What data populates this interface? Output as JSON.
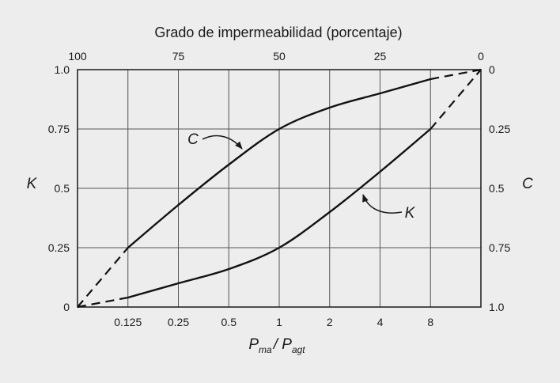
{
  "chart_data": {
    "type": "line",
    "title": "Grado de impermeabilidad (porcentaje)",
    "xlabel": {
      "main1": "P",
      "sub1": "ma",
      "sep": "/ ",
      "main2": "P",
      "sub2": "agt"
    },
    "ylabel_left": "K",
    "ylabel_right": "C",
    "x_scale": "log2",
    "x_ticks_bottom": [
      "0.125",
      "0.25",
      "0.5",
      "1",
      "2",
      "4",
      "8"
    ],
    "x_ticks_top": [
      "100",
      "75",
      "50",
      "25",
      "0"
    ],
    "y_ticks_left": [
      "0",
      "0.25",
      "0.5",
      "0.75",
      "1.0"
    ],
    "y_ticks_right": [
      "1.0",
      "0.75",
      "0.5",
      "0.25",
      "0"
    ],
    "xlim": [
      0.0625,
      16
    ],
    "ylim": [
      0,
      1
    ],
    "grid": true,
    "series": [
      {
        "name": "C",
        "x": [
          0.0625,
          0.125,
          0.25,
          0.5,
          1,
          2,
          4,
          8,
          16
        ],
        "y": [
          0.0,
          0.25,
          0.43,
          0.6,
          0.75,
          0.84,
          0.9,
          0.96,
          1.0
        ],
        "dashed_x_ranges": [
          [
            0.0625,
            0.125
          ],
          [
            8,
            16
          ]
        ]
      },
      {
        "name": "K",
        "x": [
          0.0625,
          0.125,
          0.25,
          0.5,
          1,
          2,
          4,
          8,
          16
        ],
        "y": [
          0.0,
          0.04,
          0.1,
          0.16,
          0.25,
          0.4,
          0.57,
          0.75,
          1.0
        ],
        "dashed_x_ranges": [
          [
            0.0625,
            0.125
          ],
          [
            8,
            16
          ]
        ]
      }
    ],
    "annotations": [
      "C",
      "K"
    ]
  }
}
